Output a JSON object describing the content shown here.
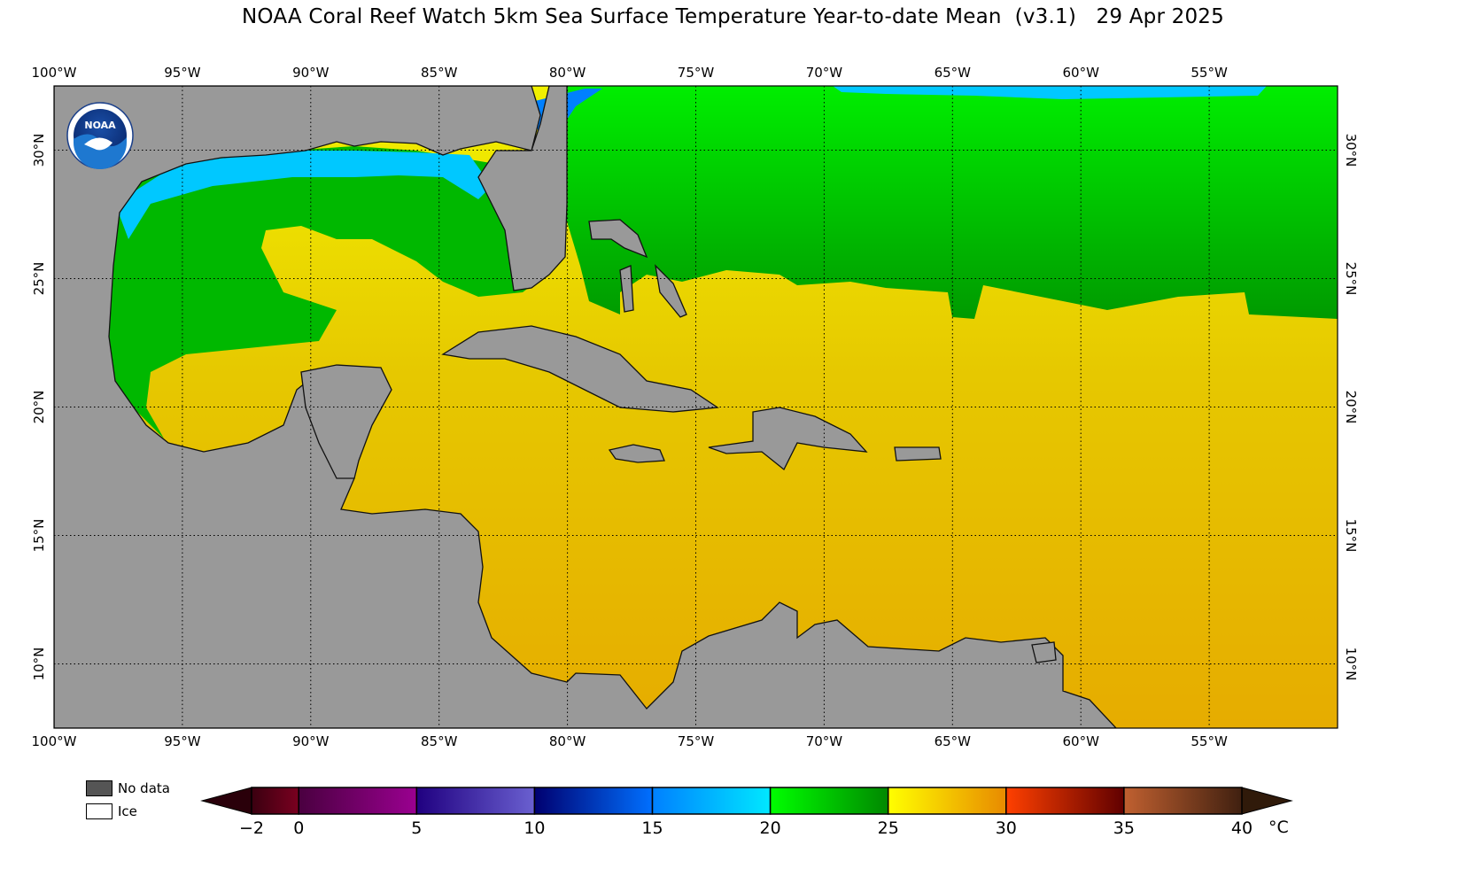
{
  "title": "NOAA Coral Reef Watch 5km Sea Surface Temperature Year-to-date Mean  (v3.1)   29 Apr 2025",
  "map": {
    "lon_labels": [
      "100°W",
      "95°W",
      "90°W",
      "85°W",
      "80°W",
      "75°W",
      "70°W",
      "65°W",
      "60°W",
      "55°W"
    ],
    "lon_values": [
      -100,
      -95,
      -90,
      -85,
      -80,
      -75,
      -70,
      -65,
      -60,
      -55
    ],
    "lat_labels": [
      "30°N",
      "25°N",
      "20°N",
      "15°N",
      "10°N"
    ],
    "lat_values": [
      30,
      25,
      20,
      15,
      10
    ],
    "lon_range": [
      -100,
      -50
    ],
    "lat_range": [
      7.5,
      32.5
    ],
    "grid": "dotted",
    "land_color": "#999999",
    "logo": "NOAA"
  },
  "legend": {
    "no_data_label": "No data",
    "no_data_color": "#555555",
    "ice_label": "Ice",
    "ice_color": "#ffffff"
  },
  "colorbar": {
    "ticks": [
      "−2",
      "0",
      "5",
      "10",
      "15",
      "20",
      "25",
      "30",
      "35",
      "40"
    ],
    "tick_values": [
      -2,
      0,
      5,
      10,
      15,
      20,
      25,
      30,
      35,
      40
    ],
    "unit": "°C",
    "range": [
      -2,
      40
    ],
    "segments": [
      {
        "from": -2,
        "to": 0,
        "c1": "#3a0010",
        "c2": "#7a0020"
      },
      {
        "from": 0,
        "to": 5,
        "c1": "#4a0040",
        "c2": "#9a0090"
      },
      {
        "from": 5,
        "to": 10,
        "c1": "#200080",
        "c2": "#6a60d0"
      },
      {
        "from": 10,
        "to": 15,
        "c1": "#000070",
        "c2": "#0070ff"
      },
      {
        "from": 15,
        "to": 20,
        "c1": "#0080ff",
        "c2": "#00e8ff"
      },
      {
        "from": 20,
        "to": 25,
        "c1": "#00ff00",
        "c2": "#008800"
      },
      {
        "from": 25,
        "to": 30,
        "c1": "#ffff00",
        "c2": "#e88a00"
      },
      {
        "from": 30,
        "to": 35,
        "c1": "#ff4000",
        "c2": "#600000"
      },
      {
        "from": 35,
        "to": 40,
        "c1": "#c06030",
        "c2": "#402010"
      }
    ],
    "under_color": "#2a000a",
    "over_color": "#301a0a"
  }
}
